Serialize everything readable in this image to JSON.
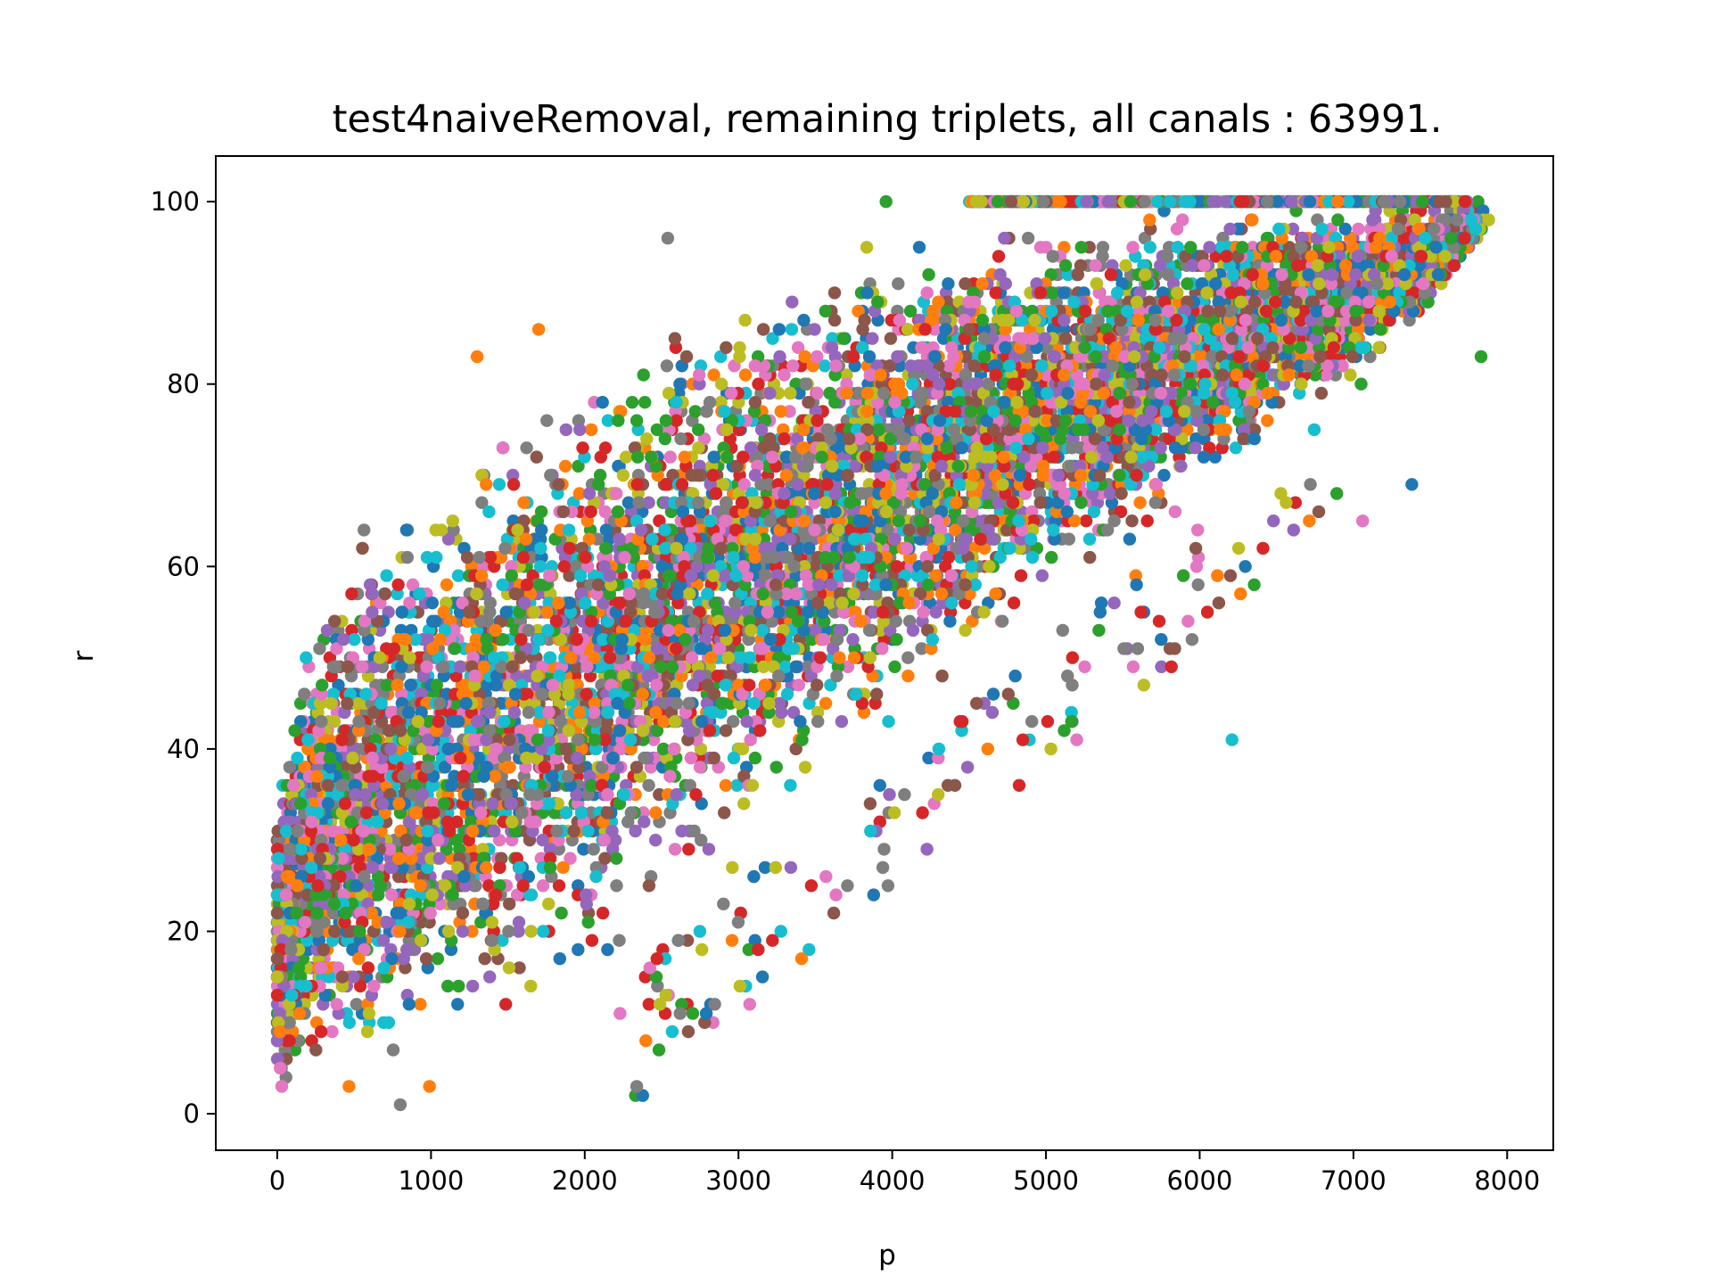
{
  "chart_data": {
    "type": "scatter",
    "title": "test4naiveRemoval, remaining triplets, all canals : 63991.",
    "xlabel": "p",
    "ylabel": "r",
    "xlim": [
      -400,
      8300
    ],
    "ylim": [
      -4,
      105
    ],
    "x_ticks": [
      0,
      1000,
      2000,
      3000,
      4000,
      5000,
      6000,
      7000,
      8000
    ],
    "x_tick_labels": [
      "0",
      "1000",
      "2000",
      "3000",
      "4000",
      "5000",
      "6000",
      "7000",
      "8000"
    ],
    "y_ticks": [
      0,
      20,
      40,
      60,
      80,
      100
    ],
    "y_tick_labels": [
      "0",
      "20",
      "40",
      "60",
      "80",
      "100"
    ],
    "grid": false,
    "legend": "none",
    "colors": [
      "#1f77b4",
      "#ff7f0e",
      "#2ca02c",
      "#d62728",
      "#9467bd",
      "#8c564b",
      "#e377c2",
      "#7f7f7f",
      "#bcbd22",
      "#17becf"
    ],
    "point_count": 63991,
    "bulk_distribution": {
      "description_points": "r rises with p; lower boundary roughly r = p/60 for p < 2500, dense band up to r = 100 at p >= 4700",
      "upper_boundary": [
        [
          0,
          35
        ],
        [
          200,
          55
        ],
        [
          500,
          66
        ],
        [
          1000,
          70
        ],
        [
          1500,
          79
        ],
        [
          2000,
          82
        ],
        [
          2500,
          89
        ],
        [
          3000,
          92
        ],
        [
          3500,
          95
        ],
        [
          4000,
          99
        ],
        [
          4500,
          100
        ],
        [
          7850,
          100
        ]
      ],
      "lower_boundary": [
        [
          0,
          1
        ],
        [
          600,
          1
        ],
        [
          1000,
          4
        ],
        [
          1500,
          9
        ],
        [
          2000,
          13
        ],
        [
          2500,
          20
        ],
        [
          3000,
          27
        ],
        [
          3500,
          33
        ],
        [
          4000,
          40
        ],
        [
          4500,
          47
        ],
        [
          5000,
          54
        ],
        [
          5500,
          60
        ],
        [
          6000,
          67
        ],
        [
          6500,
          74
        ],
        [
          7000,
          80
        ],
        [
          7500,
          88
        ],
        [
          7850,
          97
        ]
      ]
    },
    "notable_points": [
      {
        "x": 2540,
        "y": 96,
        "color": "#7f7f7f"
      },
      {
        "x": 1700,
        "y": 86,
        "color": "#ff7f0e"
      },
      {
        "x": 1300,
        "y": 83,
        "color": "#ff7f0e"
      },
      {
        "x": 2620,
        "y": 11,
        "color": "#7f7f7f"
      },
      {
        "x": 2230,
        "y": 11,
        "color": "#e377c2"
      },
      {
        "x": 2470,
        "y": 17,
        "color": "#d62728"
      },
      {
        "x": 6210,
        "y": 41,
        "color": "#17becf"
      },
      {
        "x": 7380,
        "y": 69,
        "color": "#1f77b4"
      },
      {
        "x": 7830,
        "y": 83,
        "color": "#2ca02c"
      },
      {
        "x": 7060,
        "y": 65,
        "color": "#e377c2"
      },
      {
        "x": 7050,
        "y": 80,
        "color": "#2ca02c"
      },
      {
        "x": 6720,
        "y": 69,
        "color": "#7f7f7f"
      },
      {
        "x": 6480,
        "y": 65,
        "color": "#9467bd"
      },
      {
        "x": 6200,
        "y": 59,
        "color": "#8c564b"
      },
      {
        "x": 6050,
        "y": 55,
        "color": "#d62728"
      },
      {
        "x": 5750,
        "y": 52,
        "color": "#1f77b4"
      },
      {
        "x": 5140,
        "y": 48,
        "color": "#7f7f7f"
      },
      {
        "x": 4800,
        "y": 48,
        "color": "#1f77b4"
      },
      {
        "x": 4490,
        "y": 38,
        "color": "#9467bd"
      },
      {
        "x": 4080,
        "y": 35,
        "color": "#7f7f7f"
      },
      {
        "x": 3920,
        "y": 36,
        "color": "#1f77b4"
      },
      {
        "x": 3100,
        "y": 26,
        "color": "#1f77b4"
      },
      {
        "x": 2960,
        "y": 27,
        "color": "#bcbd22"
      },
      {
        "x": 800,
        "y": 1,
        "color": "#7f7f7f"
      },
      {
        "x": 990,
        "y": 3,
        "color": "#ff7f0e"
      },
      {
        "x": 3960,
        "y": 100,
        "color": "#2ca02c"
      },
      {
        "x": 7880,
        "y": 98,
        "color": "#bcbd22"
      }
    ]
  }
}
